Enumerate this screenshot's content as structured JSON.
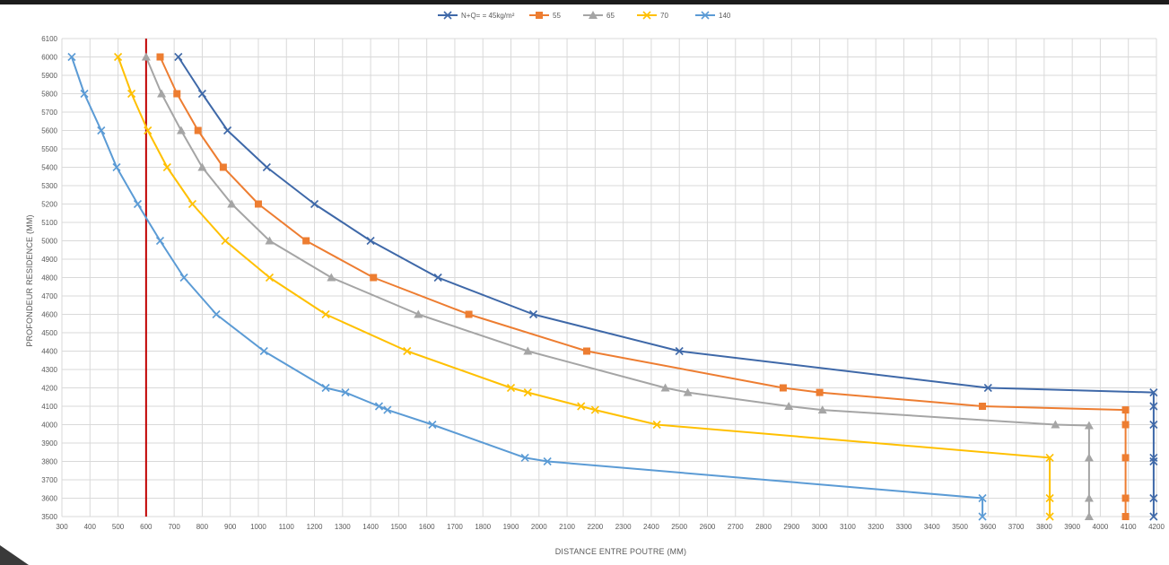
{
  "chart_data": {
    "type": "line",
    "xlabel": "DISTANCE ENTRE POUTRE (MM)",
    "ylabel": "PROFONDEUR RESIDENCE (MM)",
    "xlim": [
      300,
      4200
    ],
    "ylim": [
      3500,
      6100
    ],
    "x_ticks": [
      300,
      400,
      500,
      600,
      700,
      800,
      900,
      1000,
      1100,
      1200,
      1300,
      1400,
      1500,
      1600,
      1700,
      1800,
      1900,
      2000,
      2100,
      2200,
      2300,
      2400,
      2500,
      2600,
      2700,
      2800,
      2900,
      3000,
      3100,
      3200,
      3300,
      3400,
      3500,
      3600,
      3700,
      3800,
      3900,
      4000,
      4100,
      4200
    ],
    "y_ticks": [
      3500,
      3600,
      3700,
      3800,
      3900,
      4000,
      4100,
      4200,
      4300,
      4400,
      4500,
      4600,
      4700,
      4800,
      4900,
      5000,
      5100,
      5200,
      5300,
      5400,
      5500,
      5600,
      5700,
      5800,
      5900,
      6000,
      6100
    ],
    "grid": true,
    "legend_position": "top",
    "reference_line": {
      "x": 600,
      "y_range": [
        3500,
        6100
      ],
      "color": "#c00000"
    },
    "series": [
      {
        "name": "N+Q= = 45kg/m²",
        "color": "#3e68a8",
        "marker": "x",
        "points": [
          [
            715,
            6000
          ],
          [
            800,
            5800
          ],
          [
            890,
            5600
          ],
          [
            1030,
            5400
          ],
          [
            1200,
            5200
          ],
          [
            1400,
            5000
          ],
          [
            1640,
            4800
          ],
          [
            1980,
            4600
          ],
          [
            2500,
            4400
          ],
          [
            3600,
            4200
          ],
          [
            4190,
            4175
          ],
          [
            4190,
            4100
          ],
          [
            4190,
            4000
          ],
          [
            4190,
            3820
          ],
          [
            4190,
            3800
          ],
          [
            4190,
            3600
          ],
          [
            4190,
            3500
          ]
        ]
      },
      {
        "name": "55",
        "color": "#ed7d31",
        "marker": "square",
        "points": [
          [
            650,
            6000
          ],
          [
            710,
            5800
          ],
          [
            785,
            5600
          ],
          [
            875,
            5400
          ],
          [
            1000,
            5200
          ],
          [
            1170,
            5000
          ],
          [
            1410,
            4800
          ],
          [
            1750,
            4600
          ],
          [
            2170,
            4400
          ],
          [
            2870,
            4200
          ],
          [
            3000,
            4175
          ],
          [
            3580,
            4100
          ],
          [
            4090,
            4080
          ],
          [
            4090,
            4000
          ],
          [
            4090,
            3820
          ],
          [
            4090,
            3600
          ],
          [
            4090,
            3500
          ]
        ]
      },
      {
        "name": "65",
        "color": "#a5a5a5",
        "marker": "triangle",
        "points": [
          [
            600,
            6000
          ],
          [
            655,
            5800
          ],
          [
            725,
            5600
          ],
          [
            800,
            5400
          ],
          [
            905,
            5200
          ],
          [
            1040,
            5000
          ],
          [
            1260,
            4800
          ],
          [
            1570,
            4600
          ],
          [
            1960,
            4400
          ],
          [
            2450,
            4200
          ],
          [
            2530,
            4175
          ],
          [
            2890,
            4100
          ],
          [
            3010,
            4080
          ],
          [
            3840,
            4000
          ],
          [
            3960,
            3995
          ],
          [
            3960,
            3820
          ],
          [
            3960,
            3600
          ],
          [
            3960,
            3500
          ]
        ]
      },
      {
        "name": "70",
        "color": "#ffc000",
        "marker": "x",
        "points": [
          [
            500,
            6000
          ],
          [
            548,
            5800
          ],
          [
            606,
            5600
          ],
          [
            675,
            5400
          ],
          [
            765,
            5200
          ],
          [
            882,
            5000
          ],
          [
            1040,
            4800
          ],
          [
            1240,
            4600
          ],
          [
            1530,
            4400
          ],
          [
            1900,
            4200
          ],
          [
            1960,
            4175
          ],
          [
            2150,
            4100
          ],
          [
            2200,
            4080
          ],
          [
            2420,
            4000
          ],
          [
            3820,
            3820
          ],
          [
            3820,
            3600
          ],
          [
            3820,
            3500
          ]
        ]
      },
      {
        "name": "140",
        "color": "#5b9bd5",
        "marker": "x",
        "points": [
          [
            335,
            6000
          ],
          [
            380,
            5800
          ],
          [
            440,
            5600
          ],
          [
            495,
            5400
          ],
          [
            570,
            5200
          ],
          [
            650,
            5000
          ],
          [
            735,
            4800
          ],
          [
            850,
            4600
          ],
          [
            1020,
            4400
          ],
          [
            1240,
            4200
          ],
          [
            1310,
            4175
          ],
          [
            1430,
            4100
          ],
          [
            1460,
            4080
          ],
          [
            1620,
            4000
          ],
          [
            1950,
            3820
          ],
          [
            2030,
            3800
          ],
          [
            3580,
            3600
          ],
          [
            3580,
            3500
          ]
        ]
      }
    ]
  }
}
